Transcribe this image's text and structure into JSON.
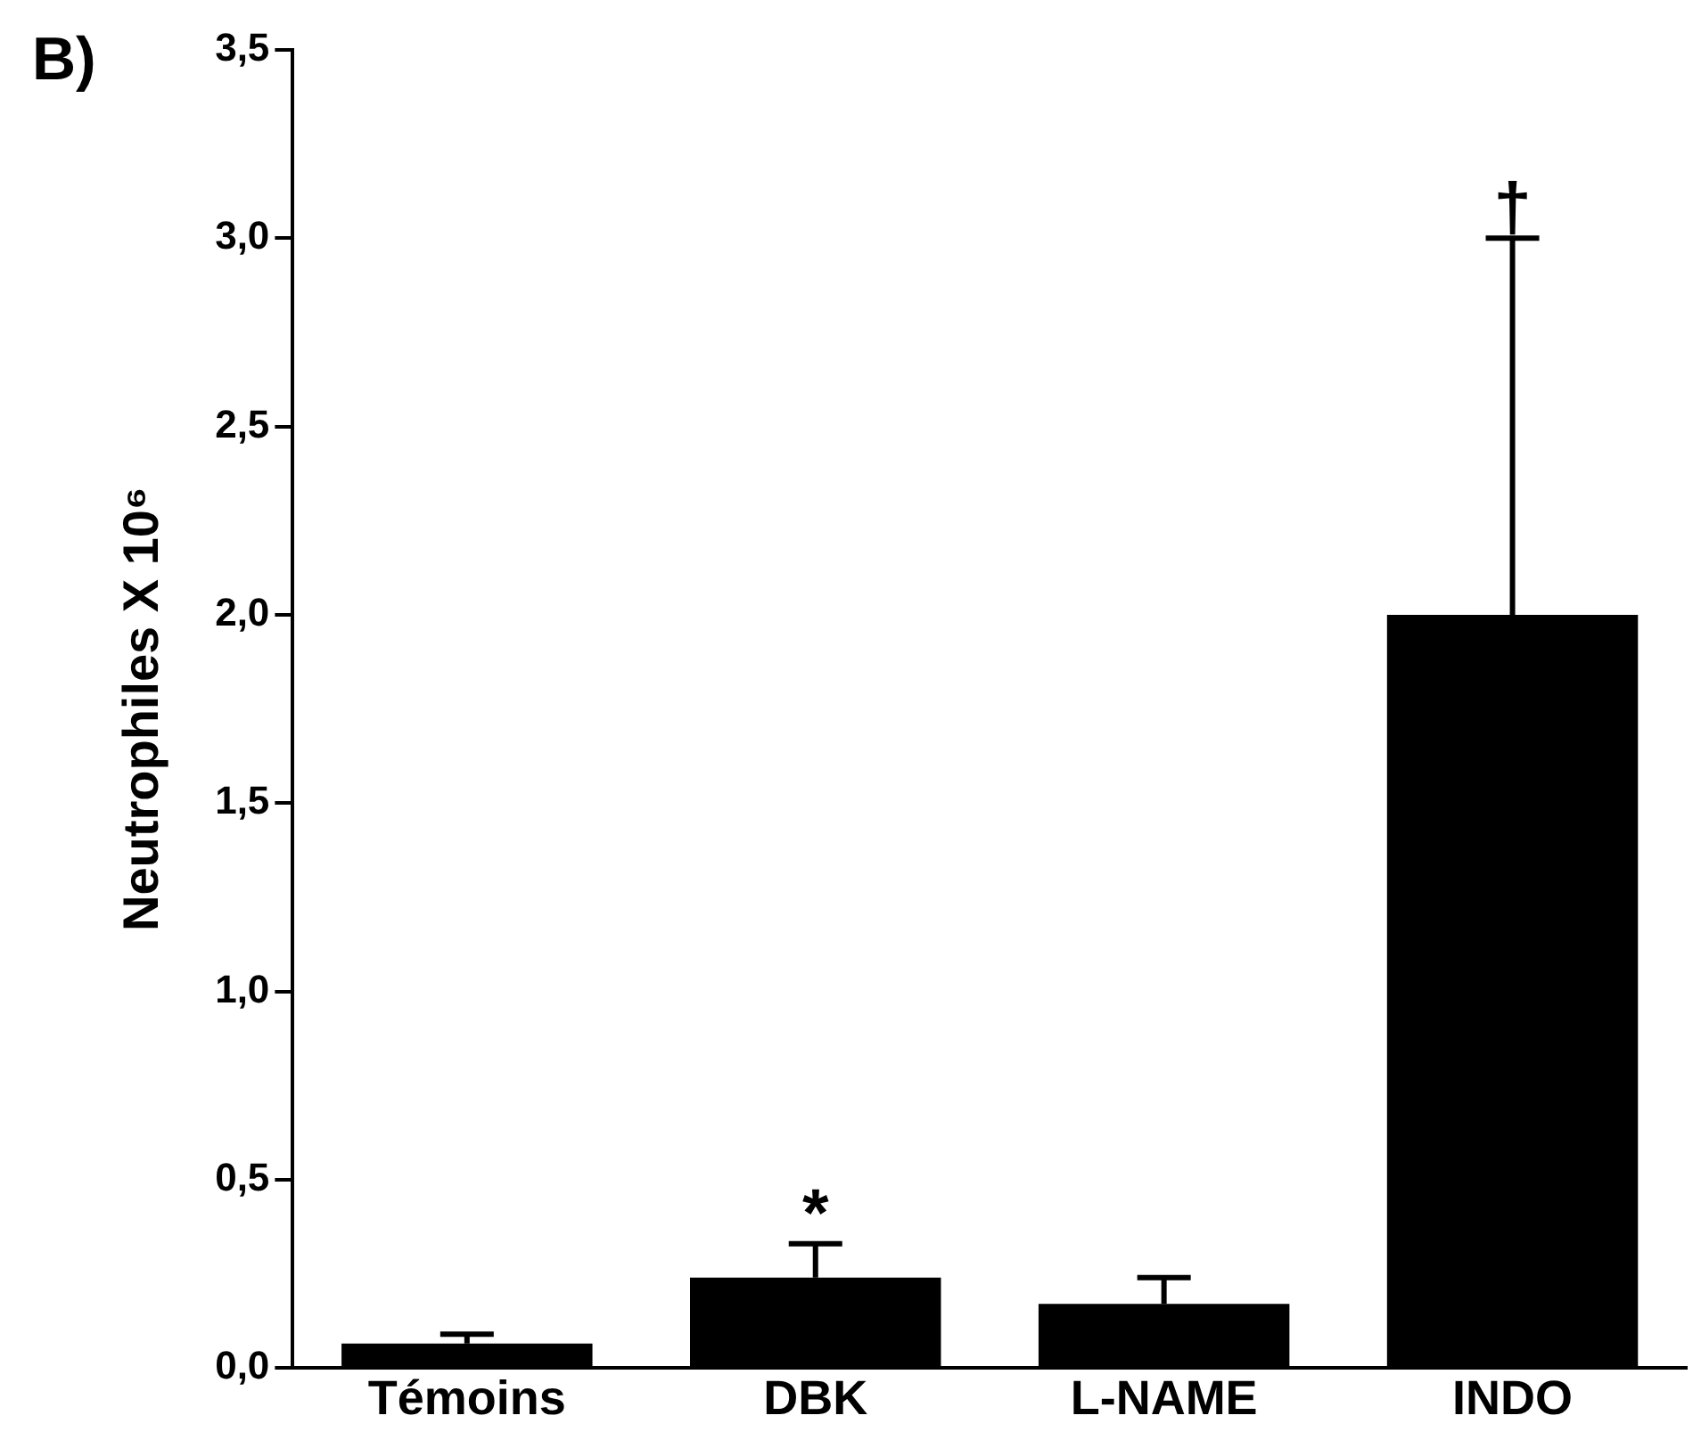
{
  "chart_data": {
    "type": "bar",
    "ylabel": "Neutrophiles X 10⁶",
    "categories": [
      "Témoins",
      "DBK",
      "L-NAME",
      "INDO"
    ],
    "values": [
      0.065,
      0.24,
      0.17,
      2.0
    ],
    "color": "#000000",
    "errors": [
      [
        0.065,
        0.09
      ],
      [
        0.24,
        0.33
      ],
      [
        0.17,
        0.24
      ],
      [
        2.0,
        3.0
      ]
    ],
    "ylim": [
      0,
      3.5
    ],
    "yticks": [
      {
        "value": 0,
        "label": "0,0"
      },
      {
        "value": 0.5,
        "label": "0,5"
      },
      {
        "value": 1,
        "label": "1,0"
      },
      {
        "value": 1.5,
        "label": "1,5"
      },
      {
        "value": 2,
        "label": "2,0"
      },
      {
        "value": 2.5,
        "label": "2,5"
      },
      {
        "value": 3,
        "label": "3,0"
      },
      {
        "value": 3.5,
        "label": "3,5"
      }
    ],
    "grid": false,
    "legend": false,
    "annotations": [
      "B)",
      {
        "text": "*",
        "x": "DBK",
        "y": 0.33
      },
      {
        "text": "†",
        "x": "INDO",
        "y": 3.0
      }
    ]
  }
}
